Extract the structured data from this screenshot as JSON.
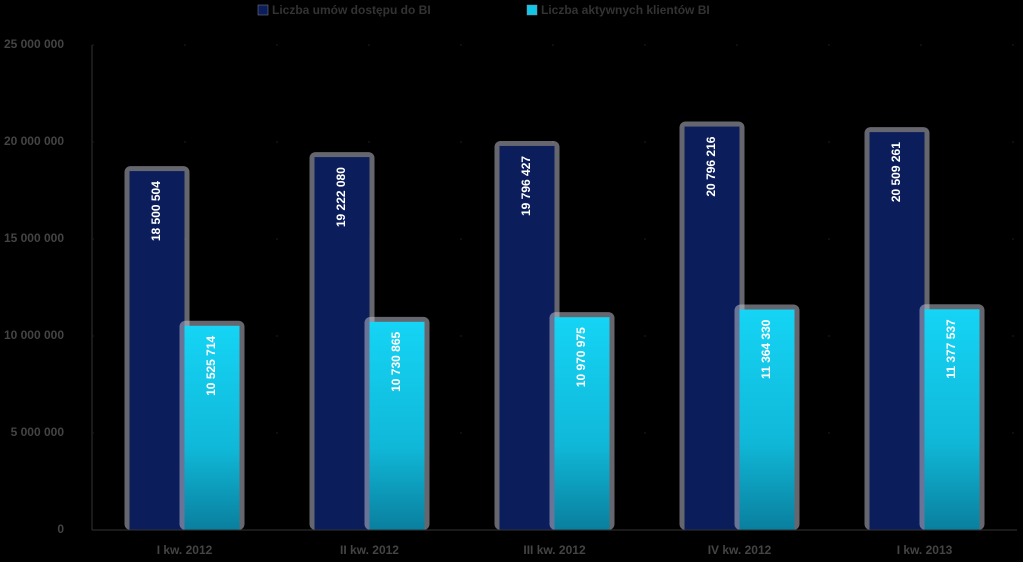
{
  "chart_data": {
    "type": "bar",
    "categories": [
      "I kw. 2012",
      "II kw. 2012",
      "III kw. 2012",
      "IV kw. 2012",
      "I kw. 2013"
    ],
    "series": [
      {
        "name": "Liczba umów dostępu do BI",
        "color": "#0b1e5b",
        "values": [
          18500504,
          19222080,
          19796427,
          20796216,
          20509261
        ],
        "value_labels": [
          "18 500 504",
          "19 222 080",
          "19 796 427",
          "20 796 216",
          "20 509 261"
        ]
      },
      {
        "name": "Liczba aktywnych klientów BI",
        "color": "#12c6e8",
        "values": [
          10525714,
          10730865,
          10970975,
          11364330,
          11377537
        ],
        "value_labels": [
          "10 525 714",
          "10 730 865",
          "10 970 975",
          "11 364 330",
          "11 377 537"
        ]
      }
    ],
    "ylim": [
      0,
      25000000
    ],
    "yticks": [
      0,
      {
        "value": 5000000,
        "label": "5 000 000"
      },
      {
        "value": 10000000,
        "label": "10 000 000"
      },
      {
        "value": 15000000,
        "label": "15 000 000"
      },
      {
        "value": 20000000,
        "label": "20 000 000"
      },
      {
        "value": 25000000,
        "label": "25 000 000"
      }
    ],
    "grid": true,
    "legend": "top"
  }
}
